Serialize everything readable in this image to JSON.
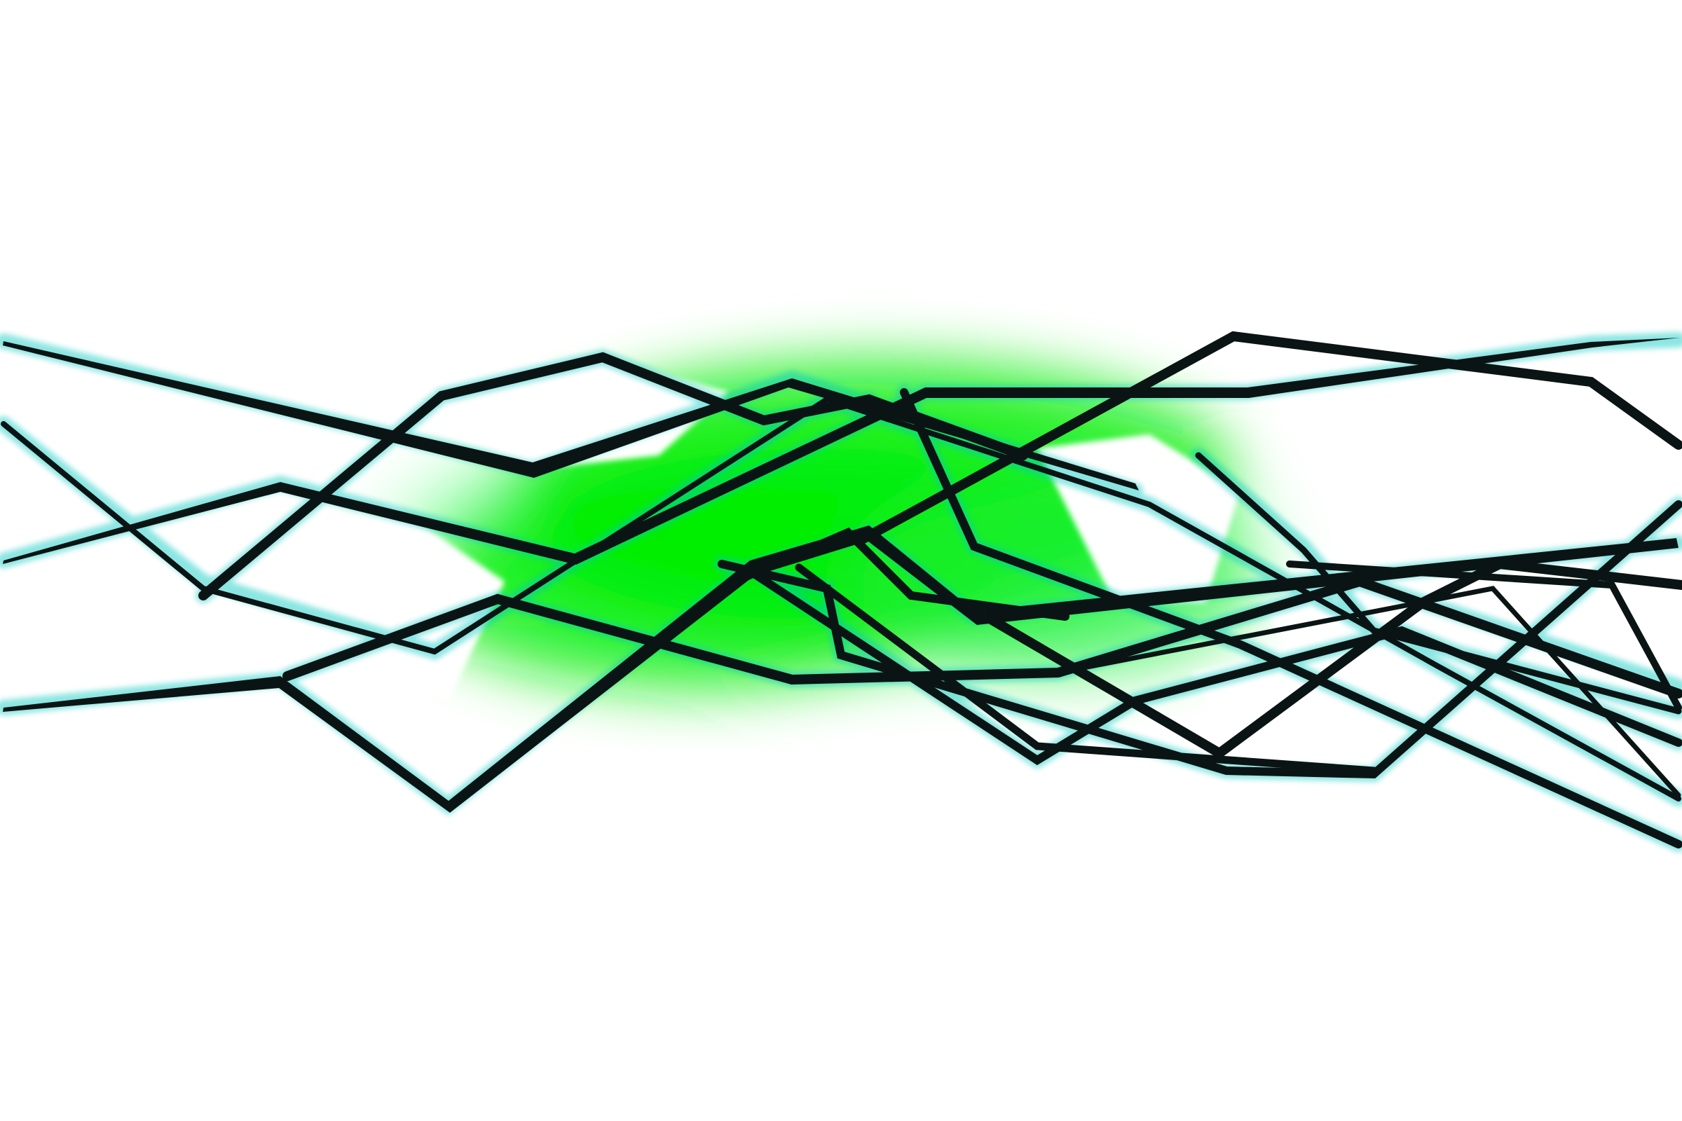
{
  "artwork": {
    "subject": "abstract-zigzag-lines-with-green-glow",
    "colors": {
      "background": "#ffffff",
      "glow": "#00ee00",
      "glow_soft": "#7dff9a",
      "edge_halo": "#00c8c0",
      "stroke": "#0b1414"
    }
  }
}
